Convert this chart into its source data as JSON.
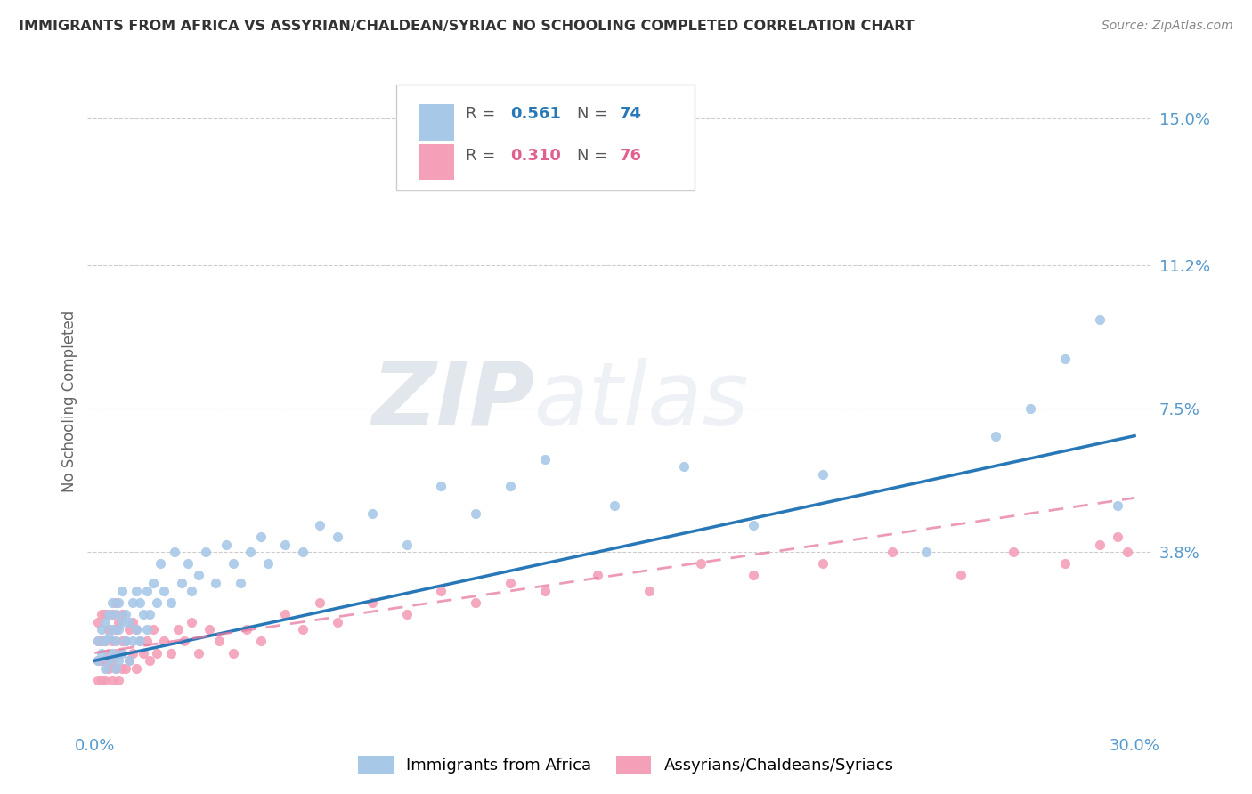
{
  "title": "IMMIGRANTS FROM AFRICA VS ASSYRIAN/CHALDEAN/SYRIAC NO SCHOOLING COMPLETED CORRELATION CHART",
  "source": "Source: ZipAtlas.com",
  "ylabel_label": "No Schooling Completed",
  "ytick_labels": [
    "3.8%",
    "7.5%",
    "11.2%",
    "15.0%"
  ],
  "ytick_values": [
    0.038,
    0.075,
    0.112,
    0.15
  ],
  "xlim": [
    -0.002,
    0.305
  ],
  "ylim": [
    -0.008,
    0.162
  ],
  "legend_r1_prefix": "R = ",
  "legend_r1_val": "0.561",
  "legend_n1_prefix": "  N = ",
  "legend_n1_val": "74",
  "legend_r2_prefix": "R = ",
  "legend_r2_val": "0.310",
  "legend_n2_prefix": "  N = ",
  "legend_n2_val": "76",
  "color_blue": "#a8c8e8",
  "color_pink": "#f4a0b8",
  "color_blue_dark": "#4a90c4",
  "color_pink_dark": "#e06090",
  "color_blue_line": "#2878b8",
  "color_pink_line": "#e878a0",
  "color_title": "#333333",
  "color_source": "#888888",
  "color_ytick": "#5599cc",
  "color_xtick": "#5599cc",
  "color_ylabel": "#666666",
  "watermark_zip": "ZIP",
  "watermark_atlas": "atlas",
  "label_africa": "Immigrants from Africa",
  "label_assyrian": "Assyrians/Chaldeans/Syriacs",
  "blue_line_x": [
    0.0,
    0.3
  ],
  "blue_line_y": [
    0.01,
    0.068
  ],
  "pink_line_x": [
    0.0,
    0.3
  ],
  "pink_line_y": [
    0.012,
    0.052
  ],
  "blue_scatter_x": [
    0.001,
    0.001,
    0.002,
    0.002,
    0.003,
    0.003,
    0.003,
    0.004,
    0.004,
    0.004,
    0.005,
    0.005,
    0.005,
    0.006,
    0.006,
    0.006,
    0.007,
    0.007,
    0.007,
    0.008,
    0.008,
    0.008,
    0.009,
    0.009,
    0.01,
    0.01,
    0.011,
    0.011,
    0.012,
    0.012,
    0.013,
    0.013,
    0.014,
    0.015,
    0.015,
    0.016,
    0.017,
    0.018,
    0.019,
    0.02,
    0.022,
    0.023,
    0.025,
    0.027,
    0.028,
    0.03,
    0.032,
    0.035,
    0.038,
    0.04,
    0.042,
    0.045,
    0.048,
    0.05,
    0.055,
    0.06,
    0.065,
    0.07,
    0.08,
    0.09,
    0.1,
    0.11,
    0.12,
    0.13,
    0.15,
    0.17,
    0.19,
    0.21,
    0.24,
    0.26,
    0.27,
    0.28,
    0.29,
    0.295
  ],
  "blue_scatter_y": [
    0.01,
    0.015,
    0.012,
    0.018,
    0.008,
    0.015,
    0.02,
    0.01,
    0.016,
    0.022,
    0.012,
    0.018,
    0.025,
    0.008,
    0.015,
    0.022,
    0.01,
    0.018,
    0.025,
    0.012,
    0.02,
    0.028,
    0.015,
    0.022,
    0.01,
    0.02,
    0.015,
    0.025,
    0.018,
    0.028,
    0.015,
    0.025,
    0.022,
    0.018,
    0.028,
    0.022,
    0.03,
    0.025,
    0.035,
    0.028,
    0.025,
    0.038,
    0.03,
    0.035,
    0.028,
    0.032,
    0.038,
    0.03,
    0.04,
    0.035,
    0.03,
    0.038,
    0.042,
    0.035,
    0.04,
    0.038,
    0.045,
    0.042,
    0.048,
    0.04,
    0.055,
    0.048,
    0.055,
    0.062,
    0.05,
    0.06,
    0.045,
    0.058,
    0.038,
    0.068,
    0.075,
    0.088,
    0.098,
    0.05
  ],
  "pink_scatter_x": [
    0.001,
    0.001,
    0.001,
    0.001,
    0.002,
    0.002,
    0.002,
    0.002,
    0.003,
    0.003,
    0.003,
    0.003,
    0.004,
    0.004,
    0.004,
    0.005,
    0.005,
    0.005,
    0.005,
    0.006,
    0.006,
    0.006,
    0.006,
    0.007,
    0.007,
    0.007,
    0.008,
    0.008,
    0.008,
    0.009,
    0.009,
    0.01,
    0.01,
    0.011,
    0.011,
    0.012,
    0.012,
    0.013,
    0.014,
    0.015,
    0.016,
    0.017,
    0.018,
    0.02,
    0.022,
    0.024,
    0.026,
    0.028,
    0.03,
    0.033,
    0.036,
    0.04,
    0.044,
    0.048,
    0.055,
    0.06,
    0.065,
    0.07,
    0.08,
    0.09,
    0.1,
    0.11,
    0.12,
    0.13,
    0.145,
    0.16,
    0.175,
    0.19,
    0.21,
    0.23,
    0.25,
    0.265,
    0.28,
    0.29,
    0.295,
    0.298
  ],
  "pink_scatter_y": [
    0.005,
    0.01,
    0.015,
    0.02,
    0.005,
    0.01,
    0.015,
    0.022,
    0.005,
    0.01,
    0.015,
    0.022,
    0.008,
    0.012,
    0.018,
    0.005,
    0.01,
    0.015,
    0.022,
    0.008,
    0.012,
    0.018,
    0.025,
    0.005,
    0.012,
    0.02,
    0.008,
    0.015,
    0.022,
    0.008,
    0.015,
    0.01,
    0.018,
    0.012,
    0.02,
    0.008,
    0.018,
    0.015,
    0.012,
    0.015,
    0.01,
    0.018,
    0.012,
    0.015,
    0.012,
    0.018,
    0.015,
    0.02,
    0.012,
    0.018,
    0.015,
    0.012,
    0.018,
    0.015,
    0.022,
    0.018,
    0.025,
    0.02,
    0.025,
    0.022,
    0.028,
    0.025,
    0.03,
    0.028,
    0.032,
    0.028,
    0.035,
    0.032,
    0.035,
    0.038,
    0.032,
    0.038,
    0.035,
    0.04,
    0.042,
    0.038
  ]
}
